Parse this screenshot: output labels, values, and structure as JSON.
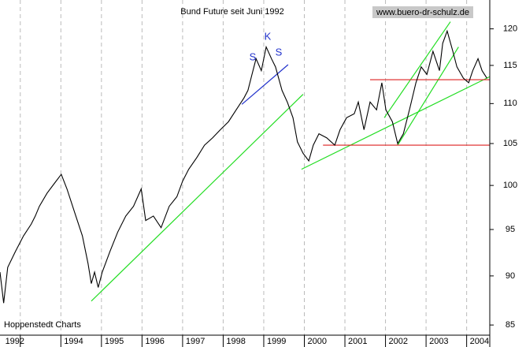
{
  "chart_data": {
    "type": "line",
    "title": "Bund Future seit Juni 1992",
    "watermark": "www.buero-dr-schulz.de",
    "source": "Hoppenstedt Charts",
    "annotations": [
      "S",
      "K",
      "S"
    ],
    "log_scale": true,
    "xlim": [
      1992.5,
      2004.57
    ],
    "ylim": [
      84,
      124.1
    ],
    "yticks": [
      85,
      90,
      95,
      100,
      105,
      110,
      115,
      120
    ],
    "xgrid": [
      1993,
      1994,
      1995,
      1996,
      1997,
      1998,
      1999,
      2000,
      2001,
      2002,
      2003,
      2004
    ],
    "xticks": [
      {
        "value": 1992.55,
        "label": "1992"
      },
      {
        "value": 1994,
        "label": "1994"
      },
      {
        "value": 1995,
        "label": "1995"
      },
      {
        "value": 1996,
        "label": "1996"
      },
      {
        "value": 1997,
        "label": "1997"
      },
      {
        "value": 1998,
        "label": "1998"
      },
      {
        "value": 1999,
        "label": "1999"
      },
      {
        "value": 2000,
        "label": "2000"
      },
      {
        "value": 2001,
        "label": "2001"
      },
      {
        "value": 2002,
        "label": "2002"
      },
      {
        "value": 2003,
        "label": "2003"
      },
      {
        "value": 2004,
        "label": "2004"
      }
    ],
    "x": [
      1992.5,
      1992.59,
      1992.69,
      1992.88,
      1993.08,
      1993.27,
      1993.37,
      1993.47,
      1993.66,
      1993.85,
      1994.01,
      1994.15,
      1994.34,
      1994.53,
      1994.67,
      1994.75,
      1994.83,
      1994.92,
      1995.02,
      1995.21,
      1995.4,
      1995.6,
      1995.79,
      1995.98,
      1996.09,
      1996.28,
      1996.47,
      1996.67,
      1996.86,
      1997.0,
      1997.15,
      1997.35,
      1997.54,
      1997.74,
      1997.93,
      1998.13,
      1998.32,
      1998.51,
      1998.61,
      1998.71,
      1998.81,
      1998.94,
      1999.06,
      1999.19,
      1999.29,
      1999.45,
      1999.58,
      1999.72,
      1999.83,
      1999.97,
      2000.11,
      2000.22,
      2000.36,
      2000.55,
      2000.75,
      2000.88,
      2001.04,
      2001.23,
      2001.33,
      2001.47,
      2001.62,
      2001.78,
      2001.91,
      2002.01,
      2002.17,
      2002.3,
      2002.44,
      2002.59,
      2002.75,
      2002.88,
      2003.02,
      2003.17,
      2003.33,
      2003.41,
      2003.52,
      2003.66,
      2003.76,
      2003.92,
      2004.05,
      2004.15,
      2004.28,
      2004.38,
      2004.5
    ],
    "series": [
      {
        "color": "#000000",
        "values": [
          90.4,
          87.2,
          90.9,
          92.6,
          94.3,
          95.6,
          96.5,
          97.6,
          99.1,
          100.3,
          101.3,
          99.6,
          96.9,
          94.3,
          91.3,
          89.2,
          90.4,
          88.8,
          90.4,
          92.6,
          94.7,
          96.5,
          97.6,
          99.6,
          96.0,
          96.5,
          95.2,
          97.6,
          98.7,
          100.5,
          101.9,
          103.3,
          104.8,
          105.7,
          106.7,
          107.7,
          109.2,
          110.7,
          111.7,
          113.8,
          115.9,
          114.3,
          117.5,
          115.9,
          114.8,
          111.7,
          110.2,
          108.2,
          105.2,
          103.8,
          102.9,
          104.8,
          106.2,
          105.7,
          104.8,
          106.7,
          108.2,
          108.7,
          110.2,
          106.7,
          110.2,
          109.2,
          112.7,
          109.2,
          107.7,
          105.0,
          106.2,
          109.2,
          112.7,
          114.8,
          113.8,
          116.9,
          114.3,
          118.0,
          119.7,
          116.9,
          114.8,
          113.3,
          112.7,
          114.3,
          115.9,
          114.3,
          113.3
        ]
      }
    ],
    "lines": [
      {
        "color": "#22dd22",
        "x": [
          1994.75,
          1999.97
        ],
        "y": [
          87.4,
          111.2
        ]
      },
      {
        "color": "#22dd22",
        "x": [
          1999.93,
          2004.57
        ],
        "y": [
          101.9,
          113.5
        ]
      },
      {
        "color": "#22dd22",
        "x": [
          2001.97,
          2003.6
        ],
        "y": [
          108.2,
          121.0
        ]
      },
      {
        "color": "#22dd22",
        "x": [
          2002.3,
          2003.8
        ],
        "y": [
          104.8,
          117.5
        ]
      },
      {
        "color": "#2233cc",
        "x": [
          1998.46,
          1999.6
        ],
        "y": [
          109.9,
          115.1
        ]
      },
      {
        "color": "#dd2222",
        "x": [
          2001.62,
          2004.57
        ],
        "y": [
          113.1,
          113.1
        ]
      },
      {
        "color": "#dd2222",
        "x": [
          2000.46,
          2004.57
        ],
        "y": [
          104.8,
          104.8
        ]
      }
    ]
  }
}
